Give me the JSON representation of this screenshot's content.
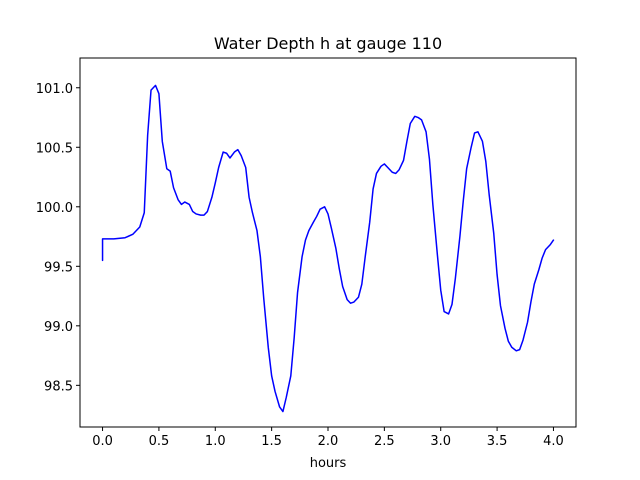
{
  "chart_data": {
    "type": "line",
    "title": "Water Depth h at gauge 110",
    "xlabel": "hours",
    "ylabel": "",
    "xlim": [
      -0.2,
      4.2
    ],
    "ylim": [
      98.15,
      101.25
    ],
    "grid": false,
    "xticks": [
      0.0,
      0.5,
      1.0,
      1.5,
      2.0,
      2.5,
      3.0,
      3.5,
      4.0
    ],
    "xtick_labels": [
      "0.0",
      "0.5",
      "1.0",
      "1.5",
      "2.0",
      "2.5",
      "3.0",
      "3.5",
      "4.0"
    ],
    "yticks": [
      98.5,
      99.0,
      99.5,
      100.0,
      100.5,
      101.0
    ],
    "ytick_labels": [
      "98.5",
      "99.0",
      "99.5",
      "100.0",
      "100.5",
      "101.0"
    ],
    "series": [
      {
        "color": "#0000ff",
        "x": [
          0.0,
          0.0,
          0.1,
          0.2,
          0.27,
          0.33,
          0.37,
          0.4,
          0.43,
          0.47,
          0.5,
          0.53,
          0.57,
          0.6,
          0.63,
          0.67,
          0.7,
          0.73,
          0.77,
          0.8,
          0.83,
          0.87,
          0.9,
          0.93,
          0.97,
          1.0,
          1.03,
          1.07,
          1.1,
          1.13,
          1.17,
          1.2,
          1.23,
          1.27,
          1.3,
          1.33,
          1.37,
          1.4,
          1.43,
          1.47,
          1.5,
          1.53,
          1.57,
          1.6,
          1.63,
          1.67,
          1.7,
          1.73,
          1.77,
          1.8,
          1.83,
          1.87,
          1.9,
          1.93,
          1.97,
          2.0,
          2.03,
          2.07,
          2.1,
          2.13,
          2.17,
          2.2,
          2.23,
          2.27,
          2.3,
          2.33,
          2.37,
          2.4,
          2.43,
          2.47,
          2.5,
          2.53,
          2.57,
          2.6,
          2.63,
          2.67,
          2.7,
          2.73,
          2.77,
          2.8,
          2.83,
          2.87,
          2.9,
          2.93,
          2.97,
          3.0,
          3.03,
          3.07,
          3.1,
          3.13,
          3.17,
          3.2,
          3.23,
          3.27,
          3.3,
          3.33,
          3.37,
          3.4,
          3.43,
          3.47,
          3.5,
          3.53,
          3.57,
          3.6,
          3.63,
          3.67,
          3.7,
          3.73,
          3.77,
          3.8,
          3.83,
          3.87,
          3.9,
          3.93,
          3.97,
          4.0
        ],
        "y": [
          99.55,
          99.73,
          99.73,
          99.74,
          99.77,
          99.83,
          99.95,
          100.6,
          100.98,
          101.02,
          100.95,
          100.55,
          100.32,
          100.3,
          100.16,
          100.06,
          100.02,
          100.04,
          100.02,
          99.96,
          99.94,
          99.93,
          99.93,
          99.96,
          100.08,
          100.2,
          100.33,
          100.46,
          100.45,
          100.41,
          100.46,
          100.48,
          100.43,
          100.33,
          100.08,
          99.95,
          99.8,
          99.58,
          99.23,
          98.82,
          98.58,
          98.45,
          98.32,
          98.28,
          98.4,
          98.58,
          98.9,
          99.28,
          99.58,
          99.72,
          99.8,
          99.87,
          99.92,
          99.98,
          100.0,
          99.94,
          99.82,
          99.65,
          99.48,
          99.33,
          99.22,
          99.19,
          99.2,
          99.24,
          99.35,
          99.58,
          99.87,
          100.15,
          100.28,
          100.34,
          100.36,
          100.33,
          100.29,
          100.28,
          100.31,
          100.39,
          100.55,
          100.7,
          100.76,
          100.75,
          100.73,
          100.63,
          100.4,
          100.02,
          99.6,
          99.3,
          99.12,
          99.1,
          99.18,
          99.4,
          99.75,
          100.05,
          100.32,
          100.5,
          100.62,
          100.63,
          100.55,
          100.38,
          100.1,
          99.78,
          99.43,
          99.17,
          98.98,
          98.87,
          98.82,
          98.79,
          98.8,
          98.88,
          99.03,
          99.2,
          99.35,
          99.47,
          99.57,
          99.64,
          99.68,
          99.72
        ]
      }
    ]
  }
}
